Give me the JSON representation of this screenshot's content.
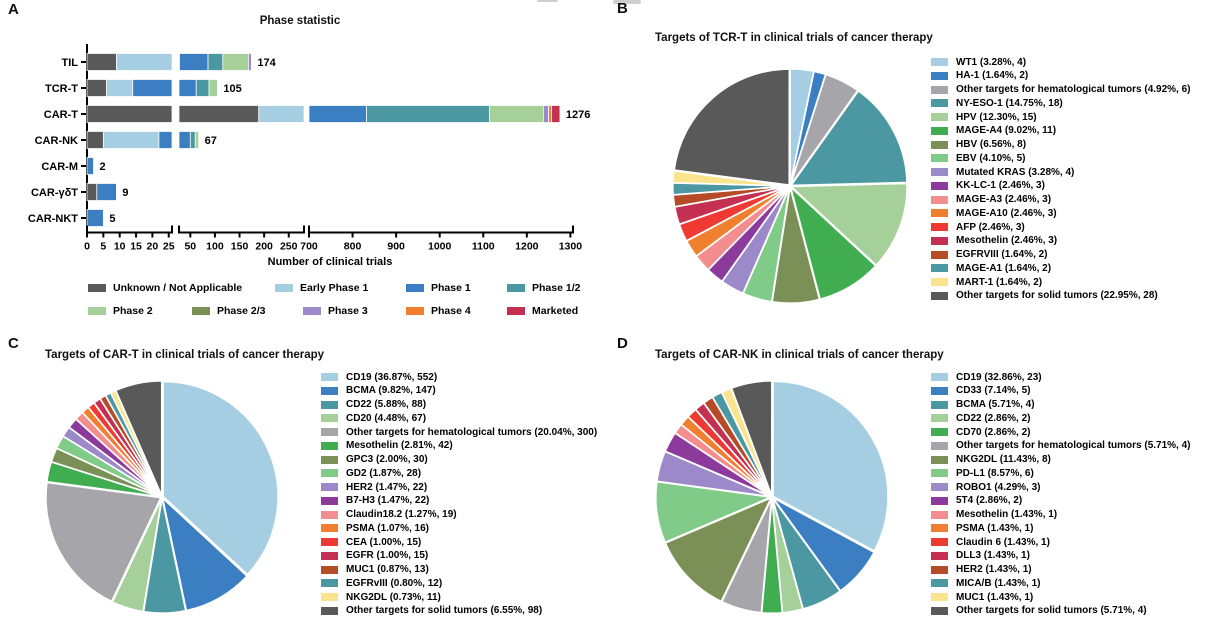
{
  "panels": {
    "a": {
      "label": "A"
    },
    "b": {
      "label": "B"
    },
    "c": {
      "label": "C"
    },
    "d": {
      "label": "D"
    }
  },
  "chart_data": [
    {
      "id": "A",
      "type": "bar",
      "orientation": "horizontal_stacked",
      "title": "Phase statistic",
      "xlabel": "Number of clinical trials",
      "categories": [
        "TIL",
        "TCR-T",
        "CAR-T",
        "CAR-NK",
        "CAR-M",
        "CAR-γδT",
        "CAR-NKT"
      ],
      "totals": [
        174,
        105,
        1276,
        67,
        2,
        9,
        5
      ],
      "axis_segments": [
        {
          "range": [
            0,
            26
          ],
          "ticks": [
            0,
            5,
            10,
            15,
            20,
            25
          ]
        },
        {
          "range": [
            27,
            281
          ],
          "ticks": [
            50,
            100,
            150,
            200,
            250
          ]
        },
        {
          "range": [
            700,
            1306
          ],
          "ticks": [
            700,
            800,
            900,
            1000,
            1100,
            1200,
            1300
          ]
        }
      ],
      "series": [
        {
          "name": "Unknown / Not Applicable",
          "color": "#595959",
          "values": [
            9,
            6,
            189,
            5,
            0,
            3,
            0
          ]
        },
        {
          "name": "Early Phase 1",
          "color": "#a6cee3",
          "values": [
            19,
            8,
            511,
            17,
            0,
            0,
            0
          ]
        },
        {
          "name": "Phase 1",
          "color": "#3b7fc2",
          "values": [
            58,
            48,
            132,
            28,
            2,
            6,
            5
          ]
        },
        {
          "name": "Phase 1/2",
          "color": "#4b97a2",
          "values": [
            30,
            26,
            282,
            10,
            0,
            0,
            0
          ]
        },
        {
          "name": "Phase 2",
          "color": "#a5d099",
          "values": [
            52,
            17,
            124,
            7,
            0,
            0,
            0
          ]
        },
        {
          "name": "Phase 2/3",
          "color": "#7b9057",
          "values": [
            0,
            0,
            0,
            0,
            0,
            0,
            0
          ]
        },
        {
          "name": "Phase 3",
          "color": "#9c89c9",
          "values": [
            6,
            0,
            12,
            0,
            0,
            0,
            0
          ]
        },
        {
          "name": "Phase 4",
          "color": "#f08030",
          "values": [
            0,
            0,
            7,
            0,
            0,
            0,
            0
          ]
        },
        {
          "name": "Marketed",
          "color": "#c43052",
          "values": [
            0,
            0,
            19,
            0,
            0,
            0,
            0
          ]
        }
      ],
      "note": "Per-phase segment values estimated from bar lengths; bar-end totals are exact as printed."
    },
    {
      "id": "B",
      "type": "pie",
      "title": "Targets of TCR-T in clinical trials of cancer therapy",
      "slices": [
        {
          "label": "WT1",
          "pct": "3.28",
          "count": "4",
          "color": "#a6cee3"
        },
        {
          "label": "HA-1",
          "pct": "1.64",
          "count": "2",
          "color": "#3b7fc2"
        },
        {
          "label": "Other targets for hematological tumors",
          "pct": "4.92",
          "count": "6",
          "color": "#a6a5aa"
        },
        {
          "label": "NY-ESO-1",
          "pct": "14.75",
          "count": "18",
          "color": "#4b97a2"
        },
        {
          "label": "HPV",
          "pct": "12.30",
          "count": "15",
          "color": "#a5d099"
        },
        {
          "label": "MAGE-A4",
          "pct": "9.02",
          "count": "11",
          "color": "#40ae50"
        },
        {
          "label": "HBV",
          "pct": "6.56",
          "count": "8",
          "color": "#7b9057"
        },
        {
          "label": "EBV",
          "pct": "4.10",
          "count": "5",
          "color": "#7fcb87"
        },
        {
          "label": "Mutated KRAS",
          "pct": "3.28",
          "count": "4",
          "color": "#9c89c9"
        },
        {
          "label": "KK-LC-1",
          "pct": "2.46",
          "count": "3",
          "color": "#8c3a9c"
        },
        {
          "label": "MAGE-A3",
          "pct": "2.46",
          "count": "3",
          "color": "#f48d8d"
        },
        {
          "label": "MAGE-A10",
          "pct": "2.46",
          "count": "3",
          "color": "#f08030"
        },
        {
          "label": "AFP",
          "pct": "2.46",
          "count": "3",
          "color": "#ee3a33"
        },
        {
          "label": "Mesothelin",
          "pct": "2.46",
          "count": "3",
          "color": "#c43052"
        },
        {
          "label": "EGFRVIII",
          "pct": "1.64",
          "count": "2",
          "color": "#b54b27"
        },
        {
          "label": "MAGE-A1",
          "pct": "1.64",
          "count": "2",
          "color": "#4b97a2"
        },
        {
          "label": "MART-1",
          "pct": "1.64",
          "count": "2",
          "color": "#fbe48d"
        },
        {
          "label": "Other targets for solid tumors",
          "pct": "22.95",
          "count": "28",
          "color": "#595959"
        }
      ]
    },
    {
      "id": "C",
      "type": "pie",
      "title": "Targets of CAR-T in clinical trials of cancer therapy",
      "slices": [
        {
          "label": "CD19",
          "pct": "36.87",
          "count": "552",
          "color": "#a6cee3"
        },
        {
          "label": "BCMA",
          "pct": "9.82",
          "count": "147",
          "color": "#3b7fc2"
        },
        {
          "label": "CD22",
          "pct": "5.88",
          "count": "88",
          "color": "#4b97a2"
        },
        {
          "label": "CD20",
          "pct": "4.48",
          "count": "67",
          "color": "#a5d099"
        },
        {
          "label": "Other targets for hematological tumors",
          "pct": "20.04",
          "count": "300",
          "color": "#a6a5aa"
        },
        {
          "label": "Mesothelin",
          "pct": "2.81",
          "count": "42",
          "color": "#40ae50"
        },
        {
          "label": "GPC3",
          "pct": "2.00",
          "count": "30",
          "color": "#7b9057"
        },
        {
          "label": "GD2",
          "pct": "1.87",
          "count": "28",
          "color": "#7fcb87"
        },
        {
          "label": "HER2",
          "pct": "1.47",
          "count": "22",
          "color": "#9c89c9"
        },
        {
          "label": "B7-H3",
          "pct": "1.47",
          "count": "22",
          "color": "#8c3a9c"
        },
        {
          "label": "Claudin18.2",
          "pct": "1.27",
          "count": "19",
          "color": "#f48d8d"
        },
        {
          "label": "PSMA",
          "pct": "1.07",
          "count": "16",
          "color": "#f08030"
        },
        {
          "label": "CEA",
          "pct": "1.00",
          "count": "15",
          "color": "#ee3a33"
        },
        {
          "label": "EGFR",
          "pct": "1.00",
          "count": "15",
          "color": "#c43052"
        },
        {
          "label": "MUC1",
          "pct": "0.87",
          "count": "13",
          "color": "#b54b27"
        },
        {
          "label": "EGFRvIII",
          "pct": "0.80",
          "count": "12",
          "color": "#4b97a2"
        },
        {
          "label": "NKG2DL",
          "pct": "0.73",
          "count": "11",
          "color": "#fbe48d"
        },
        {
          "label": "Other targets for solid tumors",
          "pct": "6.55",
          "count": "98",
          "color": "#595959"
        }
      ]
    },
    {
      "id": "D",
      "type": "pie",
      "title": "Targets of CAR-NK in clinical trials of cancer therapy",
      "slices": [
        {
          "label": "CD19",
          "pct": "32.86",
          "count": "23",
          "color": "#a6cee3"
        },
        {
          "label": "CD33",
          "pct": "7.14",
          "count": "5",
          "color": "#3b7fc2"
        },
        {
          "label": "BCMA",
          "pct": "5.71",
          "count": "4",
          "color": "#4b97a2"
        },
        {
          "label": "CD22",
          "pct": "2.86",
          "count": "2",
          "color": "#a5d099"
        },
        {
          "label": "CD70",
          "pct": "2.86",
          "count": "2",
          "color": "#40ae50"
        },
        {
          "label": "Other targets for hematological tumors",
          "pct": "5.71",
          "count": "4",
          "color": "#a6a5aa"
        },
        {
          "label": "NKG2DL",
          "pct": "11.43",
          "count": "8",
          "color": "#7b9057"
        },
        {
          "label": "PD-L1",
          "pct": "8.57",
          "count": "6",
          "color": "#7fcb87"
        },
        {
          "label": "ROBO1",
          "pct": "4.29",
          "count": "3",
          "color": "#9c89c9"
        },
        {
          "label": "5T4",
          "pct": "2.86",
          "count": "2",
          "color": "#8c3a9c"
        },
        {
          "label": "Mesothelin",
          "pct": "1.43",
          "count": "1",
          "color": "#f48d8d"
        },
        {
          "label": "PSMA",
          "pct": "1.43",
          "count": "1",
          "color": "#f08030"
        },
        {
          "label": "Claudin 6",
          "pct": "1.43",
          "count": "1",
          "color": "#ee3a33"
        },
        {
          "label": "DLL3",
          "pct": "1.43",
          "count": "1",
          "color": "#c43052"
        },
        {
          "label": "HER2",
          "pct": "1.43",
          "count": "1",
          "color": "#b54b27"
        },
        {
          "label": "MICA/B",
          "pct": "1.43",
          "count": "1",
          "color": "#4b97a2"
        },
        {
          "label": "MUC1",
          "pct": "1.43",
          "count": "1",
          "color": "#fbe48d"
        },
        {
          "label": "Other targets for solid tumors",
          "pct": "5.71",
          "count": "4",
          "color": "#595959"
        }
      ]
    }
  ]
}
